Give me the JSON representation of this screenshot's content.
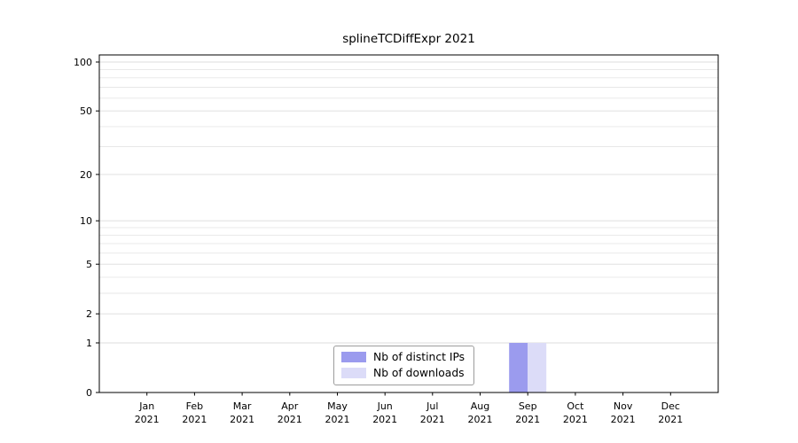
{
  "chart_data": {
    "type": "bar",
    "title": "splineTCDiffExpr 2021",
    "categories": [
      {
        "month": "Jan",
        "year": "2021"
      },
      {
        "month": "Feb",
        "year": "2021"
      },
      {
        "month": "Mar",
        "year": "2021"
      },
      {
        "month": "Apr",
        "year": "2021"
      },
      {
        "month": "May",
        "year": "2021"
      },
      {
        "month": "Jun",
        "year": "2021"
      },
      {
        "month": "Jul",
        "year": "2021"
      },
      {
        "month": "Aug",
        "year": "2021"
      },
      {
        "month": "Sep",
        "year": "2021"
      },
      {
        "month": "Oct",
        "year": "2021"
      },
      {
        "month": "Nov",
        "year": "2021"
      },
      {
        "month": "Dec",
        "year": "2021"
      }
    ],
    "series": [
      {
        "name": "Nb of distinct IPs",
        "color": "#9b9bee",
        "values": [
          0,
          0,
          0,
          0,
          0,
          0,
          0,
          0,
          1,
          0,
          0,
          0
        ]
      },
      {
        "name": "Nb of downloads",
        "color": "#dcdcf8",
        "values": [
          0,
          0,
          0,
          0,
          0,
          0,
          0,
          0,
          1,
          0,
          0,
          0
        ]
      }
    ],
    "yscale": "log1p",
    "ylim": [
      0,
      100
    ],
    "yticks": [
      0,
      1,
      2,
      5,
      10,
      20,
      50,
      100
    ],
    "minor_gridlines": [
      1,
      2,
      3,
      4,
      5,
      6,
      7,
      8,
      9,
      10,
      20,
      30,
      40,
      50,
      60,
      70,
      80,
      90,
      100
    ],
    "grid": true,
    "legend_position": "bottom-center"
  },
  "colors": {
    "axis": "#000000",
    "text": "#000000",
    "grid_minor": "#e7e7e7",
    "grid_major": "#dcdcdc",
    "legend_border": "#9c9c9c"
  }
}
